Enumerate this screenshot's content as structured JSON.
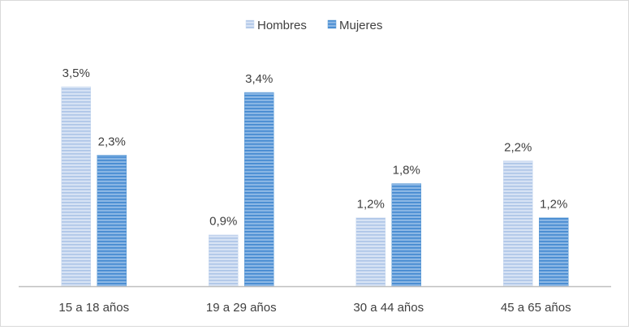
{
  "chart_data": {
    "type": "bar",
    "categories": [
      "15 a 18 años",
      "19 a 29 años",
      "30 a 44 años",
      "45 a 65 años"
    ],
    "series": [
      {
        "name": "Hombres",
        "values": [
          3.5,
          0.9,
          1.2,
          2.2
        ],
        "labels": [
          "3,5%",
          "0,9%",
          "1,2%",
          "2,2%"
        ],
        "color": "#bdd0ec"
      },
      {
        "name": "Mujeres",
        "values": [
          2.3,
          3.4,
          1.8,
          1.2
        ],
        "labels": [
          "2,3%",
          "3,4%",
          "1,8%",
          "1,2%"
        ],
        "color": "#5b9bd5"
      }
    ],
    "title": "",
    "xlabel": "",
    "ylabel": "",
    "ylim": [
      0,
      3.5
    ],
    "legend": "top-center",
    "grid": false
  }
}
